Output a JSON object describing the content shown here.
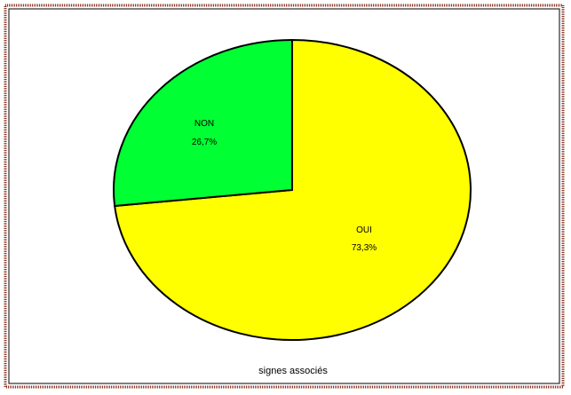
{
  "chart_data": {
    "type": "pie",
    "title": "signes associés",
    "slices": [
      {
        "label": "OUI",
        "value": 73.3,
        "display_value": "73,3%",
        "color": "#ffff00"
      },
      {
        "label": "NON",
        "value": 26.7,
        "display_value": "26,7%",
        "color": "#00ff33"
      }
    ],
    "legend": "none",
    "colors": {
      "outline": "#000000",
      "frame_border": "#8b2b1b"
    }
  }
}
